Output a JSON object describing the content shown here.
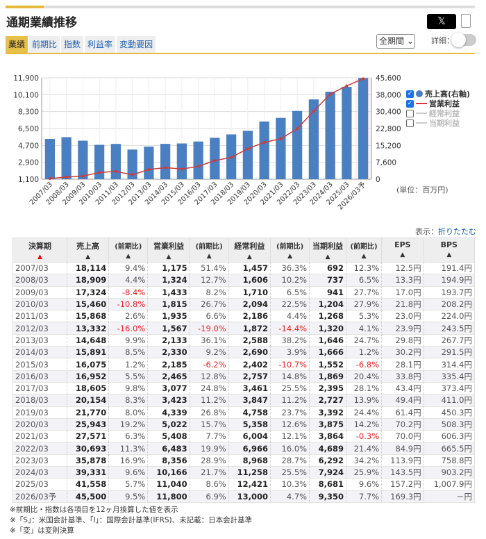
{
  "title": "通期業績推移",
  "share_label": "𝕏",
  "tabs": [
    "業績",
    "前期比",
    "指数",
    "利益率",
    "変動要因"
  ],
  "active_tab": 0,
  "period_select": "全期間",
  "detail_label": "詳細：",
  "detail_toggle_on": false,
  "colors": {
    "accent": "#e6b93c",
    "bar": "#4a7fc1",
    "line": "#d03a3a",
    "negative": "#e22222"
  },
  "chart_data": {
    "type": "bar+line",
    "categories": [
      "2007/03",
      "2008/03",
      "2009/03",
      "2010/03",
      "2011/03",
      "2012/03",
      "2013/03",
      "2014/03",
      "2015/03",
      "2016/03",
      "2017/03",
      "2018/03",
      "2019/03",
      "2020/03",
      "2021/03",
      "2022/03",
      "2023/03",
      "2024/03",
      "2025/03",
      "2026/03予"
    ],
    "left_axis": {
      "ticks": [
        "1,100",
        "2,900",
        "4,700",
        "6,500",
        "8,300",
        "10,100",
        "11,900"
      ],
      "range": [
        1100,
        11900
      ]
    },
    "right_axis": {
      "ticks": [
        "0",
        "7,600",
        "15,200",
        "22,800",
        "30,400",
        "38,000",
        "45,600"
      ],
      "range": [
        0,
        45600
      ]
    },
    "series": [
      {
        "name": "売上高(右軸)",
        "type": "bar",
        "axis": "right",
        "checked": true,
        "values": [
          18114,
          18909,
          17324,
          15460,
          15868,
          13332,
          14648,
          15891,
          16075,
          16952,
          18605,
          20154,
          21770,
          25943,
          27571,
          30693,
          35878,
          39331,
          41558,
          45500
        ]
      },
      {
        "name": "営業利益",
        "type": "line",
        "axis": "left",
        "checked": true,
        "values": [
          1175,
          1324,
          1433,
          1815,
          1935,
          1567,
          2133,
          2330,
          2185,
          2465,
          3077,
          3423,
          4339,
          5022,
          5408,
          6483,
          8356,
          10166,
          11040,
          11800
        ]
      },
      {
        "name": "経常利益",
        "type": "line",
        "checked": false
      },
      {
        "name": "当期利益",
        "type": "line",
        "checked": false
      }
    ],
    "grid": true,
    "legend": "right"
  },
  "unit_label": "(単位：百万円)",
  "display_label": "表示：",
  "fold_link": "折りたたむ",
  "table": {
    "headers": [
      "決算期",
      "売上高",
      "(前期比)",
      "営業利益",
      "(前期比)",
      "経常利益",
      "(前期比)",
      "当期利益",
      "(前期比)",
      "EPS",
      "BPS"
    ],
    "sort_arrow": "▲",
    "rows": [
      [
        "2007/03",
        "18,114",
        "9.4%",
        "1,175",
        "51.4%",
        "1,457",
        "36.3%",
        "692",
        "12.3%",
        "12.5円",
        "191.4円"
      ],
      [
        "2008/03",
        "18,909",
        "4.4%",
        "1,324",
        "12.7%",
        "1,606",
        "10.2%",
        "737",
        "6.5%",
        "13.3円",
        "194.9円"
      ],
      [
        "2009/03",
        "17,324",
        "-8.4%",
        "1,433",
        "8.2%",
        "1,710",
        "6.5%",
        "941",
        "27.7%",
        "17.0円",
        "193.7円"
      ],
      [
        "2010/03",
        "15,460",
        "-10.8%",
        "1,815",
        "26.7%",
        "2,094",
        "22.5%",
        "1,204",
        "27.9%",
        "21.8円",
        "208.2円"
      ],
      [
        "2011/03",
        "15,868",
        "2.6%",
        "1,935",
        "6.6%",
        "2,186",
        "4.4%",
        "1,268",
        "5.3%",
        "23.0円",
        "224.0円"
      ],
      [
        "2012/03",
        "13,332",
        "-16.0%",
        "1,567",
        "-19.0%",
        "1,872",
        "-14.4%",
        "1,320",
        "4.1%",
        "23.9円",
        "243.5円"
      ],
      [
        "2013/03",
        "14,648",
        "9.9%",
        "2,133",
        "36.1%",
        "2,588",
        "38.2%",
        "1,646",
        "24.7%",
        "29.8円",
        "267.7円"
      ],
      [
        "2014/03",
        "15,891",
        "8.5%",
        "2,330",
        "9.2%",
        "2,690",
        "3.9%",
        "1,666",
        "1.2%",
        "30.2円",
        "291.5円"
      ],
      [
        "2015/03",
        "16,075",
        "1.2%",
        "2,185",
        "-6.2%",
        "2,402",
        "-10.7%",
        "1,552",
        "-6.8%",
        "28.1円",
        "314.4円"
      ],
      [
        "2016/03",
        "16,952",
        "5.5%",
        "2,465",
        "12.8%",
        "2,757",
        "14.8%",
        "1,869",
        "20.4%",
        "33.8円",
        "335.4円"
      ],
      [
        "2017/03",
        "18,605",
        "9.8%",
        "3,077",
        "24.8%",
        "3,461",
        "25.5%",
        "2,395",
        "28.1%",
        "43.4円",
        "373.4円"
      ],
      [
        "2018/03",
        "20,154",
        "8.3%",
        "3,423",
        "11.2%",
        "3,847",
        "11.2%",
        "2,727",
        "13.9%",
        "49.4円",
        "411.0円"
      ],
      [
        "2019/03",
        "21,770",
        "8.0%",
        "4,339",
        "26.8%",
        "4,758",
        "23.7%",
        "3,392",
        "24.4%",
        "61.4円",
        "450.3円"
      ],
      [
        "2020/03",
        "25,943",
        "19.2%",
        "5,022",
        "15.7%",
        "5,358",
        "12.6%",
        "3,875",
        "14.2%",
        "70.2円",
        "508.3円"
      ],
      [
        "2021/03",
        "27,571",
        "6.3%",
        "5,408",
        "7.7%",
        "6,004",
        "12.1%",
        "3,864",
        "-0.3%",
        "70.0円",
        "606.3円"
      ],
      [
        "2022/03",
        "30,693",
        "11.3%",
        "6,483",
        "19.9%",
        "6,966",
        "16.0%",
        "4,689",
        "21.4%",
        "84.9円",
        "665.5円"
      ],
      [
        "2023/03",
        "35,878",
        "16.9%",
        "8,356",
        "28.9%",
        "8,968",
        "28.7%",
        "6,292",
        "34.2%",
        "113.9円",
        "758.8円"
      ],
      [
        "2024/03",
        "39,331",
        "9.6%",
        "10,166",
        "21.7%",
        "11,258",
        "25.5%",
        "7,924",
        "25.9%",
        "143.5円",
        "903.2円"
      ],
      [
        "2025/03",
        "41,558",
        "5.7%",
        "11,040",
        "8.6%",
        "12,421",
        "10.3%",
        "8,681",
        "9.6%",
        "157.2円",
        "1,007.9円"
      ],
      [
        "2026/03予",
        "45,500",
        "9.5%",
        "11,800",
        "6.9%",
        "13,000",
        "4.7%",
        "9,350",
        "7.7%",
        "169.3円",
        "－円"
      ]
    ]
  },
  "notes": [
    "※前期比・指数は各項目を12ヶ月換算した値を表示",
    "※「S」：米国会計基準、「I」：国際会計基準(IFRS)、未記載：日本会計基準",
    "※「変」は変則決算"
  ]
}
